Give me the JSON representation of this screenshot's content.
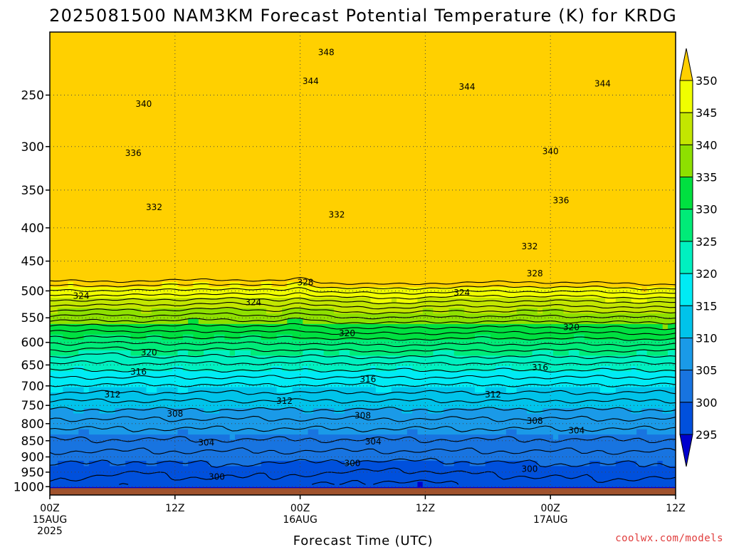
{
  "chart_data": {
    "type": "contour",
    "title": "2025081500 NAM3KM Forecast Potential Temperature (K) for KRDG",
    "xlabel": "Forecast Time (UTC)",
    "x_ticks": [
      {
        "hour": 0,
        "lines": [
          "00Z",
          "15AUG",
          "2025"
        ]
      },
      {
        "hour": 12,
        "lines": [
          "12Z"
        ]
      },
      {
        "hour": 24,
        "lines": [
          "00Z",
          "16AUG"
        ]
      },
      {
        "hour": 36,
        "lines": [
          "12Z"
        ]
      },
      {
        "hour": 48,
        "lines": [
          "00Z",
          "17AUG"
        ]
      },
      {
        "hour": 60,
        "lines": [
          "12Z"
        ]
      }
    ],
    "xlim": [
      0,
      60
    ],
    "y_ticks": [
      250,
      300,
      350,
      400,
      450,
      500,
      550,
      600,
      650,
      700,
      750,
      800,
      850,
      900,
      950,
      1000
    ],
    "ylim": [
      200,
      1030
    ],
    "y_scale": "log",
    "grid": true,
    "colorbar": {
      "levels": [
        295,
        300,
        305,
        310,
        315,
        320,
        325,
        330,
        335,
        340,
        345,
        350
      ],
      "colors": [
        "#0000cd",
        "#0050dc",
        "#1874e0",
        "#1a9ae8",
        "#00c3ea",
        "#00ebf4",
        "#00f0c0",
        "#00eb78",
        "#00e040",
        "#8ee000",
        "#c3e600",
        "#f0ff00",
        "#ffd000"
      ],
      "extend": "both",
      "placement": "right"
    },
    "contour_interval": 2,
    "contour_labels": [
      {
        "value": "348",
        "hour": 26.5,
        "p": 215
      },
      {
        "value": "344",
        "hour": 25.0,
        "p": 238
      },
      {
        "value": "344",
        "hour": 40.0,
        "p": 243
      },
      {
        "value": "344",
        "hour": 53.0,
        "p": 240
      },
      {
        "value": "340",
        "hour": 9.0,
        "p": 258
      },
      {
        "value": "340",
        "hour": 48.0,
        "p": 305
      },
      {
        "value": "336",
        "hour": 8.0,
        "p": 307
      },
      {
        "value": "336",
        "hour": 49.0,
        "p": 363
      },
      {
        "value": "332",
        "hour": 10.0,
        "p": 372
      },
      {
        "value": "332",
        "hour": 27.5,
        "p": 382
      },
      {
        "value": "332",
        "hour": 46.0,
        "p": 427
      },
      {
        "value": "328",
        "hour": 24.5,
        "p": 485
      },
      {
        "value": "328",
        "hour": 46.5,
        "p": 470
      },
      {
        "value": "324",
        "hour": 3.0,
        "p": 509
      },
      {
        "value": "324",
        "hour": 19.5,
        "p": 521
      },
      {
        "value": "324",
        "hour": 39.5,
        "p": 503
      },
      {
        "value": "320",
        "hour": 9.5,
        "p": 622
      },
      {
        "value": "320",
        "hour": 28.5,
        "p": 581
      },
      {
        "value": "320",
        "hour": 50.0,
        "p": 569
      },
      {
        "value": "316",
        "hour": 8.5,
        "p": 666
      },
      {
        "value": "316",
        "hour": 30.5,
        "p": 684
      },
      {
        "value": "316",
        "hour": 47.0,
        "p": 656
      },
      {
        "value": "312",
        "hour": 6.0,
        "p": 722
      },
      {
        "value": "312",
        "hour": 22.5,
        "p": 738
      },
      {
        "value": "312",
        "hour": 42.5,
        "p": 722
      },
      {
        "value": "308",
        "hour": 12.0,
        "p": 773
      },
      {
        "value": "308",
        "hour": 30.0,
        "p": 778
      },
      {
        "value": "308",
        "hour": 46.5,
        "p": 792
      },
      {
        "value": "304",
        "hour": 15.0,
        "p": 856
      },
      {
        "value": "304",
        "hour": 31.0,
        "p": 853
      },
      {
        "value": "304",
        "hour": 50.5,
        "p": 820
      },
      {
        "value": "300",
        "hour": 16.0,
        "p": 966
      },
      {
        "value": "300",
        "hour": 29.0,
        "p": 921
      },
      {
        "value": "300",
        "hour": 46.0,
        "p": 940
      }
    ],
    "ground": {
      "color": "#a0522d",
      "p_top": 1005
    }
  },
  "footer": {
    "credit": "coolwx.com/models",
    "credit_color": "#e03c3c"
  }
}
